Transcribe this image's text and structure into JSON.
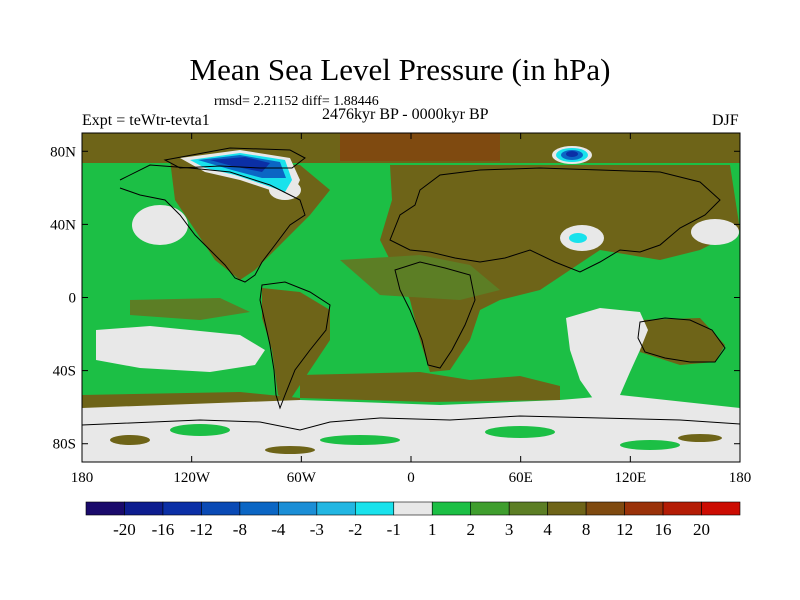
{
  "title": "Mean Sea Level Pressure (in hPa)",
  "stats": "rmsd= 2.21152  diff= 1.88446",
  "experiment": "Expt = teWtr-tevta1",
  "period": "2476kyr BP - 0000kyr BP",
  "season": "DJF",
  "lat_ticks": [
    "80N",
    "40N",
    "0",
    "40S",
    "80S"
  ],
  "lon_ticks": [
    "180",
    "120W",
    "60W",
    "0",
    "60E",
    "120E",
    "180"
  ],
  "colorbar": {
    "labels": [
      "-20",
      "-16",
      "-12",
      "-8",
      "-4",
      "-3",
      "-2",
      "-1",
      "1",
      "2",
      "3",
      "4",
      "8",
      "12",
      "16",
      "20"
    ],
    "colors": [
      "#1a0a6b",
      "#0d1d8f",
      "#0b2fa6",
      "#0a4ab5",
      "#0b66c4",
      "#1b8ed6",
      "#22b6e2",
      "#19e2ec",
      "#e8e8e8",
      "#1cbf45",
      "#3f9e2e",
      "#5c7e25",
      "#6e6418",
      "#7f4a10",
      "#9a3209",
      "#b41c05",
      "#cc0c02"
    ]
  },
  "chart_data": {
    "type": "map",
    "variable": "Mean Sea Level Pressure difference",
    "units": "hPa",
    "levels": [
      -20,
      -16,
      -12,
      -8,
      -4,
      -3,
      -2,
      -1,
      1,
      2,
      3,
      4,
      8,
      12,
      16,
      20
    ],
    "lon_range": [
      -180,
      180
    ],
    "lat_range": [
      -90,
      90
    ],
    "rmsd": 2.21152,
    "diff": 1.88446
  }
}
